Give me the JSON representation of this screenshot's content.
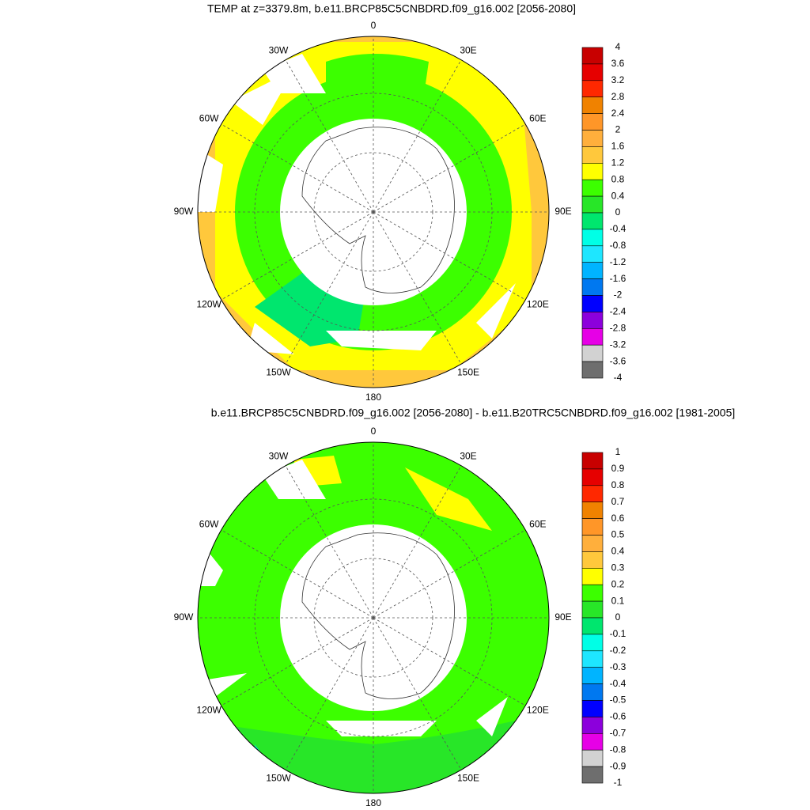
{
  "panels": [
    {
      "title": "TEMP at z=3379.8m, b.e11.BRCP85C5CNBDRD.f09_g16.002 [2056-2080]",
      "lon_labels": [
        "0",
        "30E",
        "60E",
        "90E",
        "120E",
        "150E",
        "180",
        "150W",
        "120W",
        "90W",
        "60W",
        "30W"
      ],
      "colorbar": {
        "labels": [
          "4",
          "3.6",
          "3.2",
          "2.8",
          "2.4",
          "2",
          "1.6",
          "1.2",
          "0.8",
          "0.4",
          "0",
          "-0.4",
          "-0.8",
          "-1.2",
          "-1.6",
          "-2",
          "-2.4",
          "-2.8",
          "-3.2",
          "-3.6",
          "-4"
        ],
        "colors": [
          "#c80000",
          "#e60000",
          "#ff2800",
          "#f08200",
          "#ff9628",
          "#ffaf3c",
          "#ffc83c",
          "#ffff00",
          "#3cff00",
          "#28e628",
          "#00e66e",
          "#00ffe6",
          "#1ee6ff",
          "#00b4ff",
          "#0078f0",
          "#0000ff",
          "#8c00dc",
          "#e600e6",
          "#d2d2d2",
          "#6e6e6e"
        ]
      }
    },
    {
      "title": "b.e11.BRCP85C5CNBDRD.f09_g16.002 [2056-2080] - b.e11.B20TRC5CNBDRD.f09_g16.002 [1981-2005]",
      "lon_labels": [
        "0",
        "30E",
        "60E",
        "90E",
        "120E",
        "150E",
        "180",
        "150W",
        "120W",
        "90W",
        "60W",
        "30W"
      ],
      "colorbar": {
        "labels": [
          "1",
          "0.9",
          "0.8",
          "0.7",
          "0.6",
          "0.5",
          "0.4",
          "0.3",
          "0.2",
          "0.1",
          "0",
          "-0.1",
          "-0.2",
          "-0.3",
          "-0.4",
          "-0.5",
          "-0.6",
          "-0.7",
          "-0.8",
          "-0.9",
          "-1"
        ],
        "colors": [
          "#c80000",
          "#e60000",
          "#ff2800",
          "#f08200",
          "#ff9628",
          "#ffaf3c",
          "#ffc83c",
          "#ffff00",
          "#3cff00",
          "#28e628",
          "#00e66e",
          "#00ffe6",
          "#1ee6ff",
          "#00b4ff",
          "#0078f0",
          "#0000ff",
          "#8c00dc",
          "#e600e6",
          "#d2d2d2",
          "#6e6e6e"
        ]
      }
    }
  ]
}
